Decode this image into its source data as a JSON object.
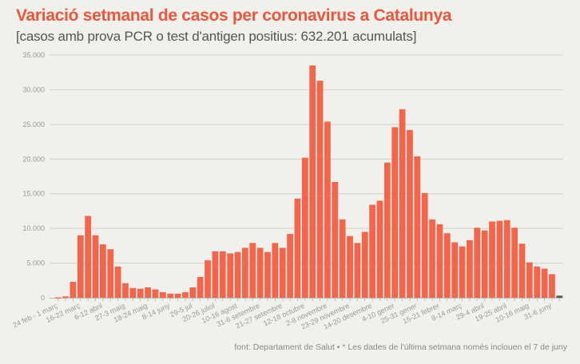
{
  "chart_data": {
    "type": "bar",
    "title": "Variació setmanal de casos per coronavirus a Catalunya",
    "subtitle": "[casos amb prova PCR o test d'antigen positius: 632.201 acumulats]",
    "note": "font: Departament de Salut • * Les dades de l'última setmana només inclouen el 7 de juny",
    "ylim": [
      0,
      35000
    ],
    "yticks": [
      0,
      5000,
      10000,
      15000,
      20000,
      25000,
      30000,
      35000
    ],
    "ytick_labels": [
      "0",
      "5.000",
      "10.000",
      "15.000",
      "20.000",
      "25.000",
      "30.000",
      "35.000"
    ],
    "grid": true,
    "xtick_labels": [
      "24 feb - 1 març",
      "16-22 març",
      "6-12 abril",
      "27-3 maig",
      "18-24 maig",
      "8-14 juny",
      "29-5 jul",
      "20-26 juliol",
      "10-16 agost",
      "31-6 setembre",
      "21-27 setembre",
      "12-18 octubre",
      "2-8 novembre",
      "23-29 novembre",
      "14-20 desembre",
      "4-10 gener",
      "25-31 gener",
      "15-21 febrer",
      "8-14 març",
      "29-4 abril",
      "19-25 abril",
      "10-16 maig",
      "31-6 juny"
    ],
    "xtick_every": 3,
    "values": [
      50,
      200,
      2300,
      9000,
      11800,
      9000,
      7700,
      7000,
      4500,
      2100,
      1400,
      1300,
      1500,
      1200,
      800,
      600,
      600,
      800,
      1500,
      3000,
      5400,
      6700,
      6700,
      6400,
      6600,
      7200,
      7900,
      7200,
      6600,
      7900,
      7200,
      9200,
      14300,
      20200,
      33500,
      31300,
      25400,
      16700,
      11300,
      8900,
      7900,
      9500,
      13400,
      14000,
      19500,
      24600,
      27200,
      24200,
      20400,
      15100,
      11300,
      10600,
      9300,
      8000,
      7400,
      8300,
      10100,
      9700,
      11000,
      11100,
      11200,
      10100,
      7800,
      5100,
      4500,
      4200,
      3400,
      300
    ],
    "colors": {
      "bar": "#f4664c",
      "partial_week_bar": "#555555",
      "title": "#e9573c"
    }
  }
}
